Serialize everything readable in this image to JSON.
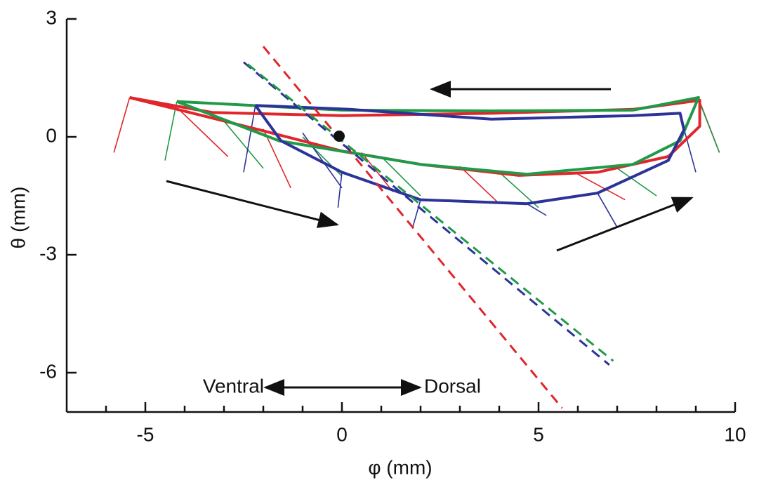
{
  "chart_data": {
    "type": "line",
    "xlabel": "φ (mm)",
    "ylabel": "θ (mm)",
    "xlim": [
      -7,
      10
    ],
    "ylim": [
      -7,
      3
    ],
    "xticks": [
      -5,
      0,
      5,
      10
    ],
    "yticks": [
      -6,
      -3,
      0,
      3
    ],
    "xminorticks": [
      -6,
      -4,
      -3,
      -2,
      -1,
      1,
      2,
      3,
      4,
      6,
      7,
      8,
      9
    ],
    "annotations": [
      "Ventral",
      "Dorsal"
    ],
    "series": [
      {
        "color": "#e0262b",
        "dash": false,
        "x": [
          -5.4,
          -2.1,
          0,
          2,
          4.5,
          6.5,
          8.3,
          9.1,
          9.1,
          7.4,
          3.8,
          0,
          -3.3,
          -5.4
        ],
        "values": [
          1.0,
          0.18,
          -0.36,
          -0.7,
          -0.98,
          -0.9,
          -0.5,
          0.27,
          0.93,
          0.7,
          0.6,
          0.54,
          0.62,
          1.0
        ],
        "sticks": [
          {
            "x": [
              -5.4,
              -5.8
            ],
            "y": [
              1.0,
              -0.4
            ]
          },
          {
            "x": [
              -4.2,
              -2.9
            ],
            "y": [
              0.75,
              -0.5
            ]
          },
          {
            "x": [
              -2,
              -1.3
            ],
            "y": [
              0.2,
              -1.3
            ]
          },
          {
            "x": [
              0.5,
              1.3
            ],
            "y": [
              -0.4,
              -1.4
            ]
          },
          {
            "x": [
              3,
              4
            ],
            "y": [
              -0.75,
              -1.7
            ]
          },
          {
            "x": [
              6,
              7.2
            ],
            "y": [
              -0.95,
              -1.6
            ]
          },
          {
            "x": [
              9.1,
              9.6
            ],
            "y": [
              0.9,
              -0.4
            ]
          }
        ]
      },
      {
        "color": "#1f9a48",
        "dash": false,
        "x": [
          -4.2,
          -1.6,
          2,
          4.7,
          7.4,
          8.6,
          9.07,
          7.4,
          3.8,
          0,
          -4.2
        ],
        "values": [
          0.9,
          -0.1,
          -0.7,
          -0.95,
          -0.7,
          -0.1,
          1.0,
          0.68,
          0.66,
          0.68,
          0.9
        ],
        "sticks": [
          {
            "x": [
              -4.2,
              -4.5
            ],
            "y": [
              0.9,
              -0.6
            ]
          },
          {
            "x": [
              -3,
              -2
            ],
            "y": [
              0.4,
              -0.8
            ]
          },
          {
            "x": [
              -1,
              0
            ],
            "y": [
              0,
              -1.0
            ]
          },
          {
            "x": [
              1,
              2
            ],
            "y": [
              -0.5,
              -1.5
            ]
          },
          {
            "x": [
              4,
              5
            ],
            "y": [
              -0.9,
              -1.8
            ]
          },
          {
            "x": [
              7,
              8
            ],
            "y": [
              -0.8,
              -1.5
            ]
          },
          {
            "x": [
              9.05,
              9.6
            ],
            "y": [
              1.0,
              -0.4
            ]
          }
        ]
      },
      {
        "color": "#2c3398",
        "dash": false,
        "x": [
          -2.2,
          0.2,
          3.8,
          7.4,
          8.6,
          8.7,
          8.3,
          6.5,
          4.7,
          2,
          0,
          -1.55,
          -2.2
        ],
        "values": [
          0.8,
          0.7,
          0.45,
          0.54,
          0.6,
          0.18,
          -0.6,
          -1.43,
          -1.7,
          -1.6,
          -0.9,
          -0.1,
          0.8
        ],
        "sticks": [
          {
            "x": [
              -2.2,
              -2.5
            ],
            "y": [
              0.8,
              -0.9
            ]
          },
          {
            "x": [
              -1,
              0
            ],
            "y": [
              0.1,
              -1.3
            ]
          },
          {
            "x": [
              0,
              -0.1
            ],
            "y": [
              -0.9,
              -1.8
            ]
          },
          {
            "x": [
              2,
              1.8
            ],
            "y": [
              -1.6,
              -2.3
            ]
          },
          {
            "x": [
              4.7,
              5.2
            ],
            "y": [
              -1.7,
              -2.0
            ]
          },
          {
            "x": [
              6.5,
              7
            ],
            "y": [
              -1.43,
              -2.3
            ]
          },
          {
            "x": [
              8.7,
              9
            ],
            "y": [
              0.2,
              -0.9
            ]
          }
        ]
      },
      {
        "color": "#e0262b",
        "dash": true,
        "x": [
          -2,
          5.6
        ],
        "values": [
          2.3,
          -6.9
        ]
      },
      {
        "color": "#2c3398",
        "dash": true,
        "x": [
          -2.5,
          6.8
        ],
        "values": [
          1.9,
          -5.8
        ]
      },
      {
        "color": "#1f9a48",
        "dash": true,
        "x": [
          -2.4,
          6.9
        ],
        "values": [
          1.85,
          -5.7
        ]
      }
    ]
  }
}
